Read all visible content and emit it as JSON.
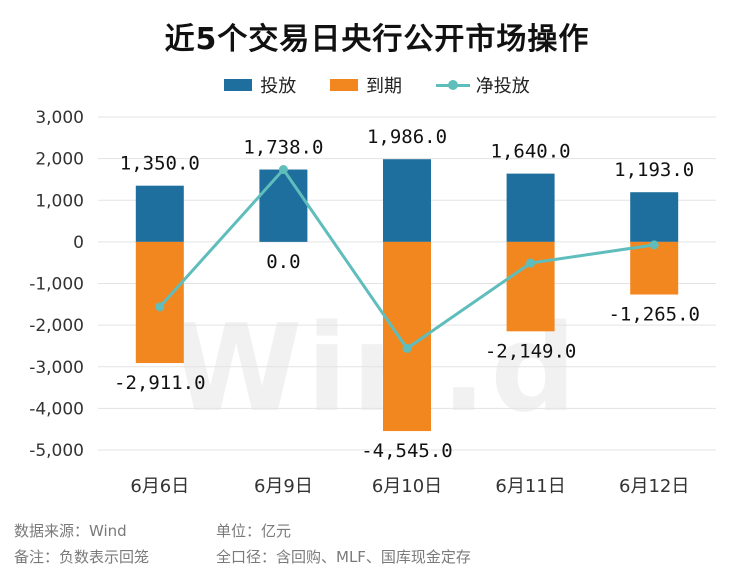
{
  "chart_data": {
    "type": "bar",
    "title": "近5个交易日央行公开市场操作",
    "categories": [
      "6月6日",
      "6月9日",
      "6月10日",
      "6月11日",
      "6月12日"
    ],
    "series": [
      {
        "name": "投放",
        "type": "bar",
        "color": "#1f6f9e",
        "values": [
          1350.0,
          1738.0,
          1986.0,
          1640.0,
          1193.0
        ],
        "labels": [
          "1,350.0",
          "1,738.0",
          "1,986.0",
          "1,640.0",
          "1,193.0"
        ]
      },
      {
        "name": "到期",
        "type": "bar",
        "color": "#f2871f",
        "values": [
          -2911.0,
          0.0,
          -4545.0,
          -2149.0,
          -1265.0
        ],
        "labels": [
          "-2,911.0",
          "0.0",
          "-4,545.0",
          "-2,149.0",
          "-1,265.0"
        ]
      },
      {
        "name": "净投放",
        "type": "line",
        "color": "#5fbdbc",
        "values": [
          -1561.0,
          1738.0,
          -2559.0,
          -509.0,
          -72.0
        ]
      }
    ],
    "yticks": [
      3000,
      2000,
      1000,
      0,
      -1000,
      -2000,
      -3000,
      -4000,
      -5000
    ],
    "ytick_labels": [
      "3,000",
      "2,000",
      "1,000",
      "0",
      "-1,000",
      "-2,000",
      "-3,000",
      "-4,000",
      "-5,000"
    ],
    "ylim": [
      -5000,
      3000
    ],
    "grid": true,
    "legend_position": "top"
  },
  "watermark": "Win.d",
  "notes": {
    "source": "数据来源：Wind",
    "unit": "单位：亿元",
    "remark": "备注：负数表示回笼",
    "scope": "全口径：含回购、MLF、国库现金定存"
  }
}
